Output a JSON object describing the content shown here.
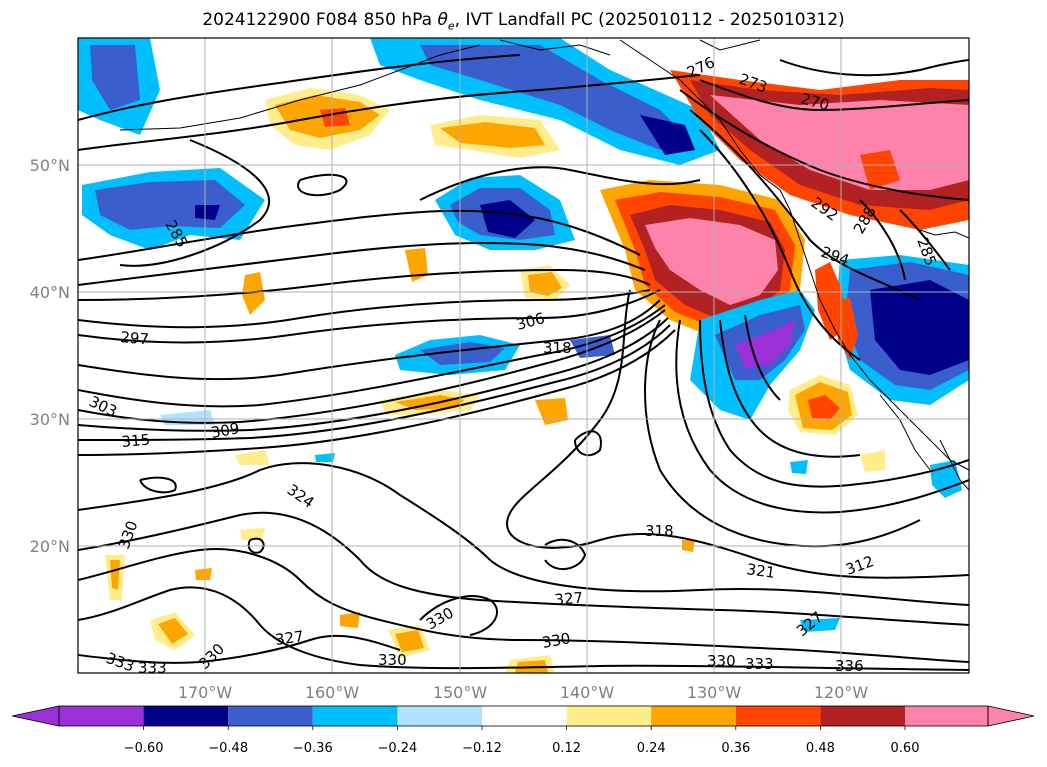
{
  "title_parts": {
    "prefix": "2024122900 F084 850 hPa ",
    "theta": "θ",
    "sub": "e",
    "suffix": ", IVT Landfall PC (2025010112 - 2025010312)"
  },
  "map": {
    "lon_ticks": [
      "170°W",
      "160°W",
      "150°W",
      "140°W",
      "130°W",
      "120°W"
    ],
    "lat_ticks": [
      "50°N",
      "40°N",
      "30°N",
      "20°N"
    ],
    "gridlines": true
  },
  "colorbar": {
    "labels": [
      "−0.60",
      "−0.48",
      "−0.36",
      "−0.24",
      "−0.12",
      "0.12",
      "0.24",
      "0.36",
      "0.48",
      "0.60"
    ],
    "colors": [
      "#9b30d8",
      "#00008b",
      "#3a5fcd",
      "#00bfff",
      "#b0e2ff",
      "#ffffff",
      "#ffec8b",
      "#ffa500",
      "#ff4500",
      "#b22222",
      "#ff82ab"
    ],
    "extend": "both"
  },
  "contour_labels": [
    "276",
    "273",
    "270",
    "285",
    "288",
    "285",
    "292",
    "294",
    "297",
    "306",
    "318",
    "303",
    "315",
    "309",
    "324",
    "330",
    "318",
    "321",
    "312",
    "327",
    "330",
    "327",
    "330",
    "330",
    "333",
    "330",
    "333",
    "336",
    "327",
    "330",
    "333"
  ]
}
